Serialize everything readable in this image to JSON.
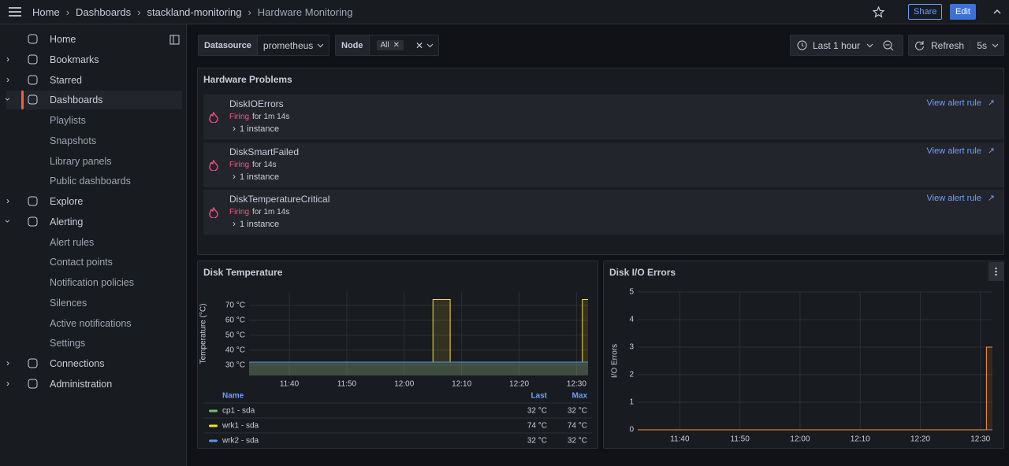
{
  "breadcrumbs": [
    "Home",
    "Dashboards",
    "stackland-monitoring",
    "Hardware Monitoring"
  ],
  "top_buttons": {
    "share": "Share",
    "edit": "Edit"
  },
  "nav": [
    {
      "label": "Home"
    },
    {
      "label": "Bookmarks"
    },
    {
      "label": "Starred"
    },
    {
      "label": "Dashboards",
      "children": [
        "Playlists",
        "Snapshots",
        "Library panels",
        "Public dashboards"
      ]
    },
    {
      "label": "Explore"
    },
    {
      "label": "Alerting",
      "children": [
        "Alert rules",
        "Contact points",
        "Notification policies",
        "Silences",
        "Active notifications",
        "Settings"
      ]
    },
    {
      "label": "Connections"
    },
    {
      "label": "Administration"
    }
  ],
  "variables": {
    "datasource_label": "Datasource",
    "datasource_value": "prometheus",
    "node_label": "Node",
    "node_value": "All"
  },
  "time_controls": {
    "range": "Last 1 hour",
    "refresh": "Refresh",
    "interval": "5s"
  },
  "alerts": {
    "title": "Hardware Problems",
    "items": [
      {
        "name": "DiskIOErrors",
        "state": "Firing",
        "duration": "for 1m 14s",
        "instances": "1 instance",
        "link": "View alert rule"
      },
      {
        "name": "DiskSmartFailed",
        "state": "Firing",
        "duration": "for 14s",
        "instances": "1 instance",
        "link": "View alert rule"
      },
      {
        "name": "DiskTemperatureCritical",
        "state": "Firing",
        "duration": "for 1m 14s",
        "instances": "1 instance",
        "link": "View alert rule"
      }
    ]
  },
  "charts": [
    {
      "type": "line",
      "title": "Disk Temperature",
      "y_label": "Temperature (°C)",
      "x": [
        "11:33",
        "12:05",
        "12:05",
        "12:08",
        "12:08",
        "12:31",
        "12:31",
        "12:32"
      ],
      "xlim": [
        "11:33",
        "12:32"
      ],
      "xticks": [
        "11:40",
        "11:50",
        "12:00",
        "12:10",
        "12:20",
        "12:30"
      ],
      "ylim": [
        23,
        79
      ],
      "yticks": [
        {
          "value": 30,
          "label": "30 °C"
        },
        {
          "value": 40,
          "label": "40 °C"
        },
        {
          "value": 50,
          "label": "50 °C"
        },
        {
          "value": 60,
          "label": "60 °C"
        },
        {
          "value": 70,
          "label": "70 °C"
        }
      ],
      "grid": true,
      "legend_columns": [
        "Name",
        "Last",
        "Max"
      ],
      "series": [
        {
          "name": "cp1 - sda",
          "color": "#73bf69",
          "values": [
            32,
            32,
            32,
            32,
            32,
            32,
            32,
            32
          ],
          "last_label": "32 °C",
          "max_label": "32 °C"
        },
        {
          "name": "wrk1 - sda",
          "color": "#fade2a",
          "values": [
            32,
            32,
            74,
            74,
            32,
            32,
            74,
            74
          ],
          "last_label": "74 °C",
          "max_label": "74 °C"
        },
        {
          "name": "wrk2 - sda",
          "color": "#5794f2",
          "values": [
            32,
            32,
            32,
            32,
            32,
            32,
            32,
            32
          ],
          "last_label": "32 °C",
          "max_label": "32 °C"
        }
      ]
    },
    {
      "type": "line",
      "title": "Disk I/O Errors",
      "y_label": "I/O Errors",
      "x": [
        "11:33",
        "12:31",
        "12:31",
        "12:32"
      ],
      "xlim": [
        "11:33",
        "12:32"
      ],
      "xticks": [
        "11:40",
        "11:50",
        "12:00",
        "12:10",
        "12:20",
        "12:30"
      ],
      "ylim": [
        0,
        5
      ],
      "yticks": [
        0,
        1,
        2,
        3,
        4,
        5
      ],
      "grid": true,
      "series": [
        {
          "color": "#b877d9",
          "values": [
            0,
            0,
            0,
            0
          ]
        },
        {
          "color": "#ff9830",
          "values": [
            0,
            0,
            3,
            3
          ]
        }
      ]
    }
  ]
}
